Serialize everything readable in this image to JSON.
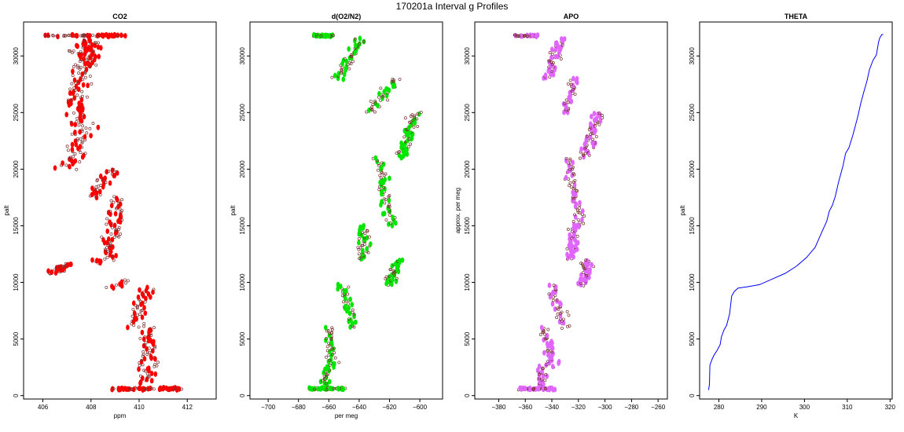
{
  "figure_title": "170201a   Interval g Profiles",
  "chart_data": [
    {
      "type": "scatter",
      "title": "CO2",
      "xlabel": "ppm",
      "ylabel": "palt",
      "xlim": [
        405.2,
        413.2
      ],
      "ylim": [
        -300,
        33000
      ],
      "xticks": [
        406,
        408,
        410,
        412
      ],
      "yticks": [
        0,
        5000,
        10000,
        15000,
        20000,
        25000,
        30000
      ],
      "color": "#ff0000",
      "segments": [
        {
          "y": [
            31800,
            31800
          ],
          "x": [
            406.1,
            409.4
          ],
          "n": 60,
          "spread": 0.25
        },
        {
          "y": [
            29000,
            31400
          ],
          "x": [
            407.8,
            407.8
          ],
          "n": 70,
          "spread": 0.8
        },
        {
          "y": [
            24000,
            29000
          ],
          "x": [
            407.4,
            407.6
          ],
          "n": 70,
          "spread": 0.75
        },
        {
          "y": [
            20000,
            24000
          ],
          "x": [
            407.1,
            407.8
          ],
          "n": 55,
          "spread": 0.7
        },
        {
          "y": [
            17500,
            20000
          ],
          "x": [
            408.0,
            408.9
          ],
          "n": 35,
          "spread": 0.55
        },
        {
          "y": [
            12000,
            17500
          ],
          "x": [
            408.6,
            409.1
          ],
          "n": 75,
          "spread": 0.6
        },
        {
          "y": [
            11700,
            12000
          ],
          "x": [
            408.3,
            408.1
          ],
          "n": 8,
          "spread": 0.4
        },
        {
          "y": [
            10800,
            11600
          ],
          "x": [
            406.3,
            407.0
          ],
          "n": 35,
          "spread": 0.5
        },
        {
          "y": [
            9500,
            10200
          ],
          "x": [
            408.8,
            409.4
          ],
          "n": 10,
          "spread": 0.5
        },
        {
          "y": [
            6000,
            9500
          ],
          "x": [
            409.8,
            410.3
          ],
          "n": 45,
          "spread": 0.55
        },
        {
          "y": [
            1000,
            6000
          ],
          "x": [
            410.3,
            410.4
          ],
          "n": 70,
          "spread": 0.6
        },
        {
          "y": [
            600,
            600
          ],
          "x": [
            408.9,
            411.6
          ],
          "n": 80,
          "spread": 0.3
        }
      ]
    },
    {
      "type": "scatter",
      "title": "d(O2/N2)",
      "xlabel": "per meg",
      "ylabel": "palt",
      "xlim": [
        -712,
        -585
      ],
      "ylim": [
        -300,
        33000
      ],
      "xticks": [
        -700,
        -680,
        -660,
        -640,
        -620,
        -600
      ],
      "yticks": [
        0,
        5000,
        10000,
        15000,
        20000,
        25000,
        30000
      ],
      "color": "#00e600",
      "segments": [
        {
          "y": [
            31800,
            31800
          ],
          "x": [
            -670,
            -658
          ],
          "n": 45,
          "spread": 3
        },
        {
          "y": [
            28000,
            31500
          ],
          "x": [
            -655,
            -638
          ],
          "n": 50,
          "spread": 6
        },
        {
          "y": [
            25000,
            28000
          ],
          "x": [
            -633,
            -615
          ],
          "n": 40,
          "spread": 6
        },
        {
          "y": [
            21000,
            25000
          ],
          "x": [
            -612,
            -604
          ],
          "n": 60,
          "spread": 6
        },
        {
          "y": [
            15000,
            21000
          ],
          "x": [
            -618,
            -628
          ],
          "n": 60,
          "spread": 6
        },
        {
          "y": [
            12000,
            15000
          ],
          "x": [
            -638,
            -636
          ],
          "n": 45,
          "spread": 6
        },
        {
          "y": [
            9800,
            12000
          ],
          "x": [
            -620,
            -614
          ],
          "n": 40,
          "spread": 6
        },
        {
          "y": [
            6000,
            9800
          ],
          "x": [
            -643,
            -652
          ],
          "n": 40,
          "spread": 6
        },
        {
          "y": [
            2500,
            6000
          ],
          "x": [
            -657,
            -660
          ],
          "n": 45,
          "spread": 6
        },
        {
          "y": [
            800,
            2500
          ],
          "x": [
            -662,
            -661
          ],
          "n": 25,
          "spread": 5
        },
        {
          "y": [
            600,
            600
          ],
          "x": [
            -672,
            -650
          ],
          "n": 50,
          "spread": 4
        }
      ]
    },
    {
      "type": "scatter",
      "title": "APO",
      "xlabel": "",
      "ylabel": "approx. per meg",
      "xlim": [
        -398,
        -253
      ],
      "ylim": [
        -300,
        33000
      ],
      "xticks": [
        -380,
        -360,
        -340,
        -320,
        -300,
        -280,
        -260
      ],
      "yticks": [
        0,
        5000,
        10000,
        15000,
        20000,
        25000,
        30000
      ],
      "color": "#e066ff",
      "segments": [
        {
          "y": [
            31800,
            31800
          ],
          "x": [
            -368,
            -352
          ],
          "n": 45,
          "spread": 4
        },
        {
          "y": [
            28000,
            31500
          ],
          "x": [
            -343,
            -333
          ],
          "n": 50,
          "spread": 7
        },
        {
          "y": [
            25000,
            28000
          ],
          "x": [
            -330,
            -322
          ],
          "n": 40,
          "spread": 7
        },
        {
          "y": [
            21000,
            25000
          ],
          "x": [
            -315,
            -305
          ],
          "n": 60,
          "spread": 7
        },
        {
          "y": [
            15000,
            21000
          ],
          "x": [
            -318,
            -328
          ],
          "n": 60,
          "spread": 7
        },
        {
          "y": [
            12000,
            15000
          ],
          "x": [
            -326,
            -322
          ],
          "n": 45,
          "spread": 7
        },
        {
          "y": [
            9800,
            12000
          ],
          "x": [
            -316,
            -314
          ],
          "n": 40,
          "spread": 7
        },
        {
          "y": [
            6000,
            9800
          ],
          "x": [
            -330,
            -340
          ],
          "n": 40,
          "spread": 7
        },
        {
          "y": [
            2500,
            6000
          ],
          "x": [
            -340,
            -345
          ],
          "n": 45,
          "spread": 7
        },
        {
          "y": [
            800,
            2500
          ],
          "x": [
            -348,
            -347
          ],
          "n": 25,
          "spread": 6
        },
        {
          "y": [
            600,
            600
          ],
          "x": [
            -363,
            -338
          ],
          "n": 50,
          "spread": 5
        }
      ]
    },
    {
      "type": "line",
      "title": "THETA",
      "xlabel": "K",
      "ylabel": "palt",
      "xlim": [
        275.5,
        320.5
      ],
      "ylim": [
        -300,
        33000
      ],
      "xticks": [
        280,
        290,
        300,
        310,
        320
      ],
      "yticks": [
        0,
        5000,
        10000,
        15000,
        20000,
        25000,
        30000
      ],
      "color": "#0000ff",
      "x": [
        277.6,
        277.8,
        277.9,
        278.4,
        278.9,
        279.6,
        280.3,
        280.6,
        281.2,
        281.8,
        282.5,
        283.0,
        283.6,
        284.5,
        286.5,
        289.5,
        292.5,
        295.5,
        298.0,
        300.5,
        302.5,
        304.0,
        305.2,
        305.8,
        306.5,
        307.2,
        308.0,
        309.0,
        309.6,
        310.4,
        311.3,
        311.8,
        312.5,
        313.2,
        314.0,
        314.6,
        315.2,
        316.0,
        316.8,
        317.3,
        317.6,
        318.1,
        318.4
      ],
      "y": [
        500,
        1000,
        2700,
        3200,
        3600,
        4000,
        4500,
        5200,
        5800,
        6200,
        7200,
        8800,
        9200,
        9500,
        9600,
        9800,
        10300,
        10800,
        11400,
        12200,
        13100,
        14400,
        15400,
        16300,
        16800,
        17600,
        18900,
        20300,
        21400,
        21900,
        23000,
        23700,
        24700,
        25900,
        27000,
        27800,
        28800,
        29600,
        30100,
        31200,
        31600,
        31900,
        31900
      ]
    }
  ]
}
